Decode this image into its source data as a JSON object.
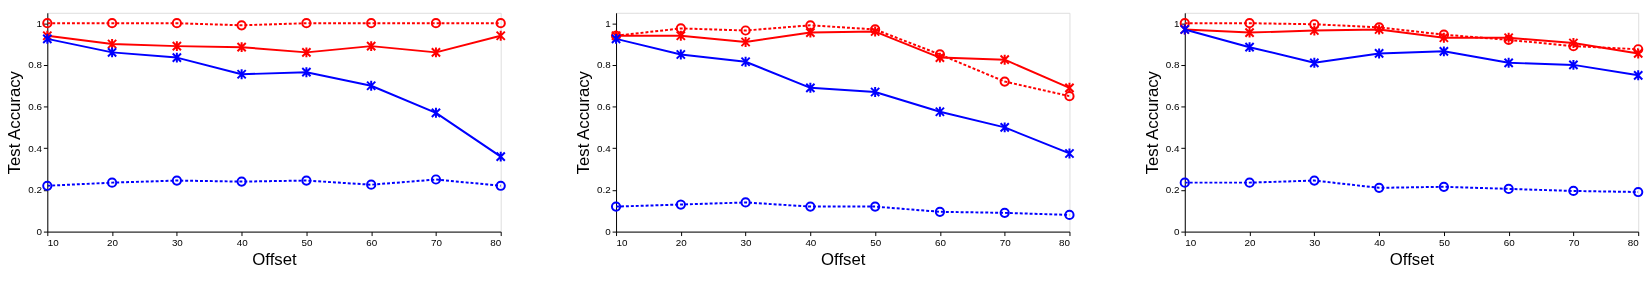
{
  "chart_data": [
    {
      "type": "line",
      "xlabel": "Offset",
      "ylabel": "Test Accuracy",
      "x": [
        10,
        20,
        30,
        40,
        50,
        60,
        70,
        80
      ],
      "xlim": [
        10,
        80
      ],
      "xticks": [
        10,
        20,
        30,
        40,
        50,
        60,
        70,
        80
      ],
      "ylim": [
        0,
        1.05
      ],
      "yticks": [
        0,
        0.2,
        0.4,
        0.6,
        0.8,
        1
      ],
      "grid": false,
      "series": [
        {
          "color": "#ff0000",
          "marker": "circle",
          "line_style": "dashed",
          "values": [
            1,
            1,
            1,
            0.99,
            1,
            1,
            1,
            1
          ]
        },
        {
          "color": "#ff0000",
          "marker": "cross",
          "line_style": "solid",
          "values": [
            0.94,
            0.9,
            0.89,
            0.885,
            0.86,
            0.89,
            0.86,
            0.94
          ]
        },
        {
          "color": "#0000ff",
          "marker": "cross",
          "line_style": "solid",
          "values": [
            0.925,
            0.86,
            0.835,
            0.755,
            0.765,
            0.7,
            0.57,
            0.36
          ]
        },
        {
          "color": "#0000ff",
          "marker": "circle",
          "line_style": "dashed",
          "values": [
            0.22,
            0.235,
            0.245,
            0.24,
            0.245,
            0.225,
            0.25,
            0.22
          ]
        }
      ]
    },
    {
      "type": "line",
      "xlabel": "Offset",
      "ylabel": "Test Accuracy",
      "x": [
        10,
        20,
        30,
        40,
        50,
        60,
        70,
        80
      ],
      "xlim": [
        10,
        80
      ],
      "xticks": [
        10,
        20,
        30,
        40,
        50,
        60,
        70,
        80
      ],
      "ylim": [
        0,
        1.05
      ],
      "yticks": [
        0,
        0.2,
        0.4,
        0.6,
        0.8,
        1
      ],
      "grid": false,
      "series": [
        {
          "color": "#ff0000",
          "marker": "circle",
          "line_style": "dashed",
          "values": [
            0.94,
            0.975,
            0.965,
            0.99,
            0.97,
            0.85,
            0.72,
            0.65
          ]
        },
        {
          "color": "#ff0000",
          "marker": "cross",
          "line_style": "solid",
          "values": [
            0.94,
            0.94,
            0.91,
            0.955,
            0.96,
            0.835,
            0.825,
            0.69
          ]
        },
        {
          "color": "#0000ff",
          "marker": "cross",
          "line_style": "solid",
          "values": [
            0.925,
            0.85,
            0.815,
            0.69,
            0.67,
            0.575,
            0.5,
            0.375
          ]
        },
        {
          "color": "#0000ff",
          "marker": "circle",
          "line_style": "dashed",
          "values": [
            0.12,
            0.13,
            0.14,
            0.12,
            0.12,
            0.095,
            0.09,
            0.08
          ]
        }
      ]
    },
    {
      "type": "line",
      "xlabel": "Offset",
      "ylabel": "Test Accuracy",
      "x": [
        10,
        20,
        30,
        40,
        50,
        60,
        70,
        80
      ],
      "xlim": [
        10,
        80
      ],
      "xticks": [
        10,
        20,
        30,
        40,
        50,
        60,
        70,
        80
      ],
      "ylim": [
        0,
        1.05
      ],
      "yticks": [
        0,
        0.2,
        0.4,
        0.6,
        0.8,
        1
      ],
      "grid": false,
      "series": [
        {
          "color": "#ff0000",
          "marker": "circle",
          "line_style": "dashed",
          "values": [
            1,
            1,
            0.995,
            0.98,
            0.945,
            0.92,
            0.89,
            0.875
          ]
        },
        {
          "color": "#ff0000",
          "marker": "cross",
          "line_style": "solid",
          "values": [
            0.97,
            0.955,
            0.965,
            0.97,
            0.93,
            0.93,
            0.905,
            0.855
          ]
        },
        {
          "color": "#0000ff",
          "marker": "cross",
          "line_style": "solid",
          "values": [
            0.97,
            0.885,
            0.81,
            0.855,
            0.865,
            0.81,
            0.8,
            0.75
          ]
        },
        {
          "color": "#0000ff",
          "marker": "circle",
          "line_style": "dashed",
          "values": [
            0.235,
            0.235,
            0.245,
            0.21,
            0.215,
            0.205,
            0.195,
            0.19
          ]
        }
      ]
    }
  ]
}
